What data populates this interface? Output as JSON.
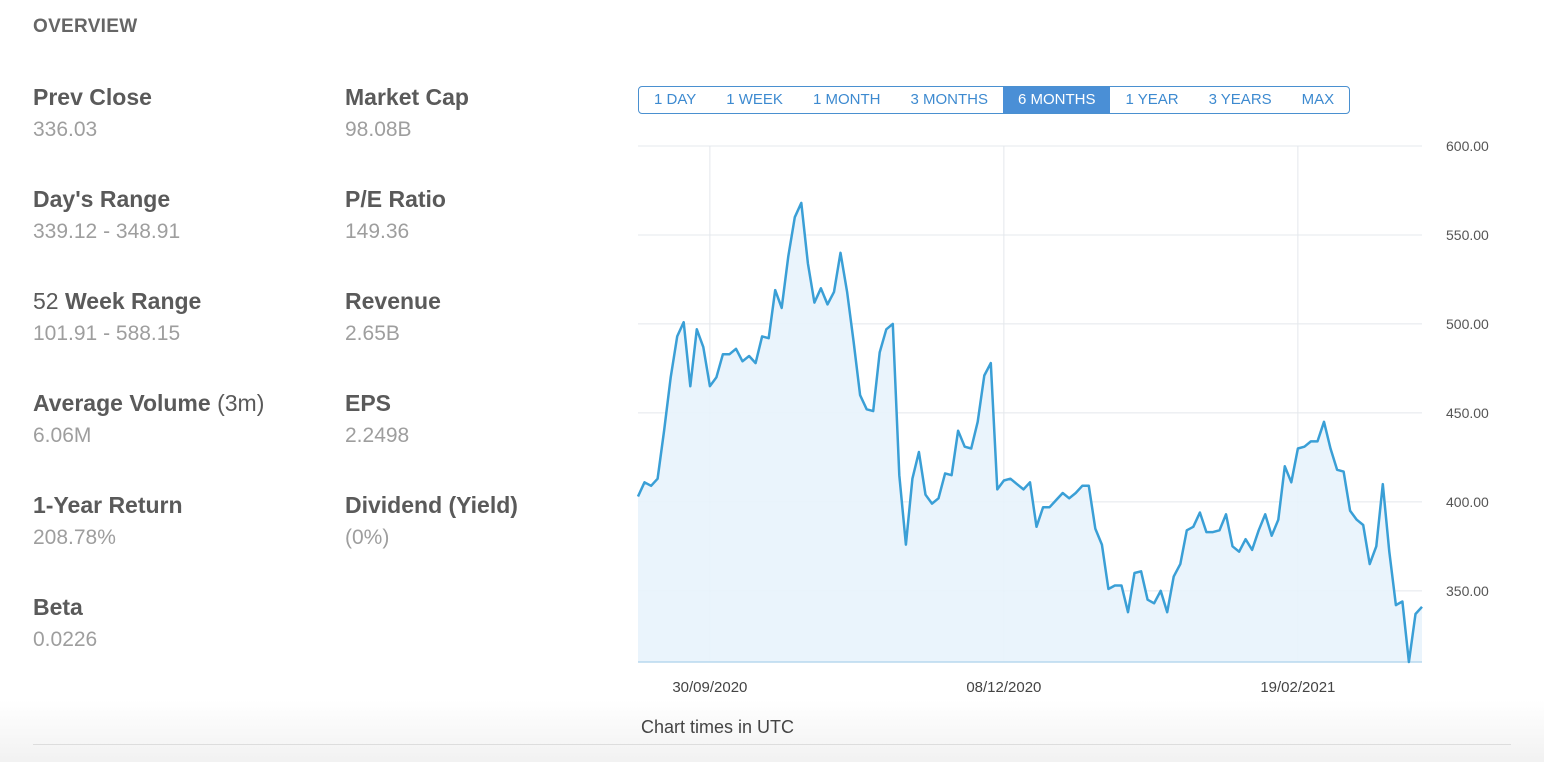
{
  "section_title": "OVERVIEW",
  "stats": {
    "prev_close": {
      "label": "Prev Close",
      "value": "336.03"
    },
    "days_range": {
      "label": "Day's Range",
      "value": "339.12 - 348.91"
    },
    "week52_range": {
      "label_num": "52",
      "label": "Week Range",
      "value": "101.91 - 588.15"
    },
    "avg_volume": {
      "label": "Average Volume",
      "label_suffix": "(3m)",
      "value": "6.06M"
    },
    "one_year_return": {
      "label": "1-Year Return",
      "value": "208.78%"
    },
    "beta": {
      "label": "Beta",
      "value": "0.0226"
    },
    "market_cap": {
      "label": "Market Cap",
      "value": "98.08B"
    },
    "pe_ratio": {
      "label": "P/E Ratio",
      "value": "149.36"
    },
    "revenue": {
      "label": "Revenue",
      "value": "2.65B"
    },
    "eps": {
      "label": "EPS",
      "value": "2.2498"
    },
    "dividend": {
      "label": "Dividend (Yield)",
      "value": "(0%)"
    }
  },
  "range_tabs": [
    {
      "label": "1 DAY",
      "active": false
    },
    {
      "label": "1 WEEK",
      "active": false
    },
    {
      "label": "1 MONTH",
      "active": false
    },
    {
      "label": "3 MONTHS",
      "active": false
    },
    {
      "label": "6 MONTHS",
      "active": true
    },
    {
      "label": "1 YEAR",
      "active": false
    },
    {
      "label": "3 YEARS",
      "active": false
    },
    {
      "label": "MAX",
      "active": false
    }
  ],
  "chart_note": "Chart times in UTC",
  "colors": {
    "line": "#3a9fd6",
    "fill": "#e8f3fc",
    "grid": "#e4e8ec",
    "accent": "#4a8fd6"
  },
  "chart_data": {
    "type": "area",
    "ylim": [
      310,
      600
    ],
    "yticks": [
      600,
      550,
      500,
      450,
      400,
      350
    ],
    "ytick_labels": [
      "600.00",
      "550.00",
      "500.00",
      "450.00",
      "400.00",
      "350.00"
    ],
    "xticks": [
      {
        "index": 11,
        "label": "30/09/2020"
      },
      {
        "index": 56,
        "label": "08/12/2020"
      },
      {
        "index": 101,
        "label": "19/02/2021"
      }
    ],
    "grid": true,
    "series": [
      {
        "values": [
          403,
          411,
          409,
          413,
          440,
          470,
          493,
          501,
          465,
          497,
          487,
          465,
          470,
          483,
          483,
          486,
          479,
          482,
          478,
          493,
          492,
          519,
          509,
          538,
          560,
          568,
          534,
          512,
          520,
          511,
          518,
          540,
          518,
          490,
          460,
          452,
          451,
          484,
          497,
          500,
          415,
          376,
          413,
          428,
          404,
          399,
          402,
          416,
          415,
          440,
          431,
          430,
          445,
          471,
          478,
          407,
          412,
          413,
          410,
          407,
          411,
          386,
          397,
          397,
          401,
          405,
          402,
          405,
          409,
          409,
          385,
          376,
          351,
          353,
          353,
          338,
          360,
          361,
          345,
          343,
          350,
          338,
          358,
          365,
          384,
          386,
          394,
          383,
          383,
          384,
          393,
          375,
          372,
          379,
          373,
          384,
          393,
          381,
          390,
          420,
          411,
          430,
          431,
          434,
          434,
          445,
          430,
          418,
          417,
          395,
          390,
          387,
          365,
          375,
          410,
          372,
          342,
          344,
          310,
          337,
          341
        ]
      }
    ]
  }
}
